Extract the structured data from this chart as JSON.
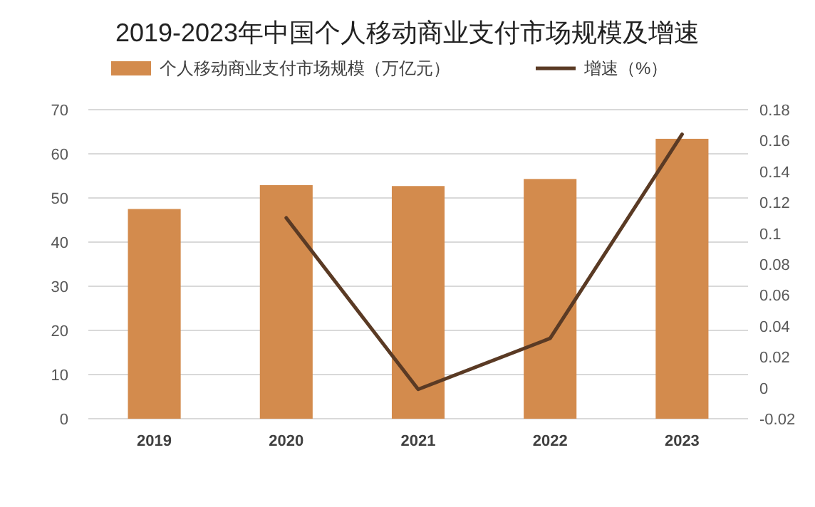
{
  "chart_data": {
    "type": "bar",
    "title": "2019-2023年中国个人移动商业支付市场规模及增速",
    "categories": [
      "2019",
      "2020",
      "2021",
      "2022",
      "2023"
    ],
    "series": [
      {
        "name": "个人移动商业支付市场规模（万亿元）",
        "color": "#d38b4d",
        "values": [
          47.5,
          52.9,
          52.7,
          54.3,
          63.4
        ]
      },
      {
        "name": "增速（%）",
        "type": "line",
        "axis": "y2",
        "color": "#5a3a24",
        "values": [
          null,
          0.11,
          -0.001,
          0.032,
          0.164
        ]
      }
    ],
    "ylim": [
      0,
      70
    ],
    "yticks": [
      0,
      10,
      20,
      30,
      40,
      50,
      60,
      70
    ],
    "y2lim": [
      -0.02,
      0.18
    ],
    "y2ticks": [
      -0.02,
      0,
      0.02,
      0.04,
      0.06,
      0.08,
      0.1,
      0.12,
      0.14,
      0.16,
      0.18
    ],
    "grid": "y",
    "legend": "top"
  }
}
